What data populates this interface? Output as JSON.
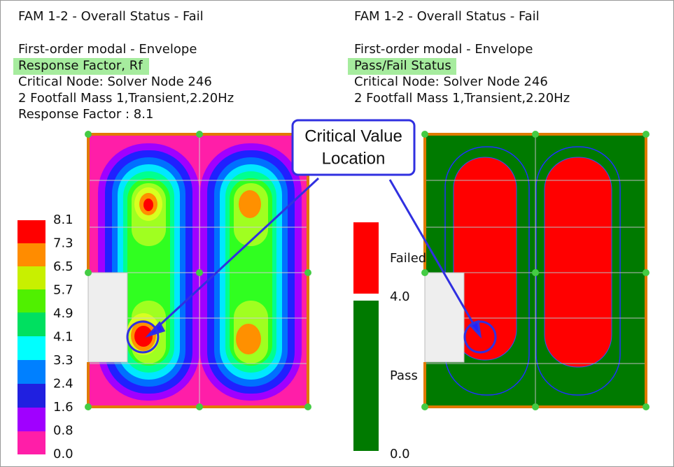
{
  "left_panel": {
    "title": "FAM 1-2 - Overall Status - Fail",
    "lines": [
      "First-order modal - Envelope",
      "Response Factor, Rf",
      "Critical Node: Solver Node 246",
      "2 Footfall Mass 1,Transient,2.20Hz",
      "Response Factor : 8.1"
    ],
    "legend": [
      "8.1",
      "7.3",
      "6.5",
      "5.7",
      "4.9",
      "4.1",
      "3.3",
      "2.4",
      "1.6",
      "0.8",
      "0.0"
    ]
  },
  "right_panel": {
    "title": "FAM 1-2 - Overall Status - Fail",
    "lines": [
      "First-order modal - Envelope",
      "Pass/Fail Status",
      "Critical Node: Solver Node 246",
      "2 Footfall Mass 1,Transient,2.20Hz"
    ],
    "legend": {
      "failed": "Failed",
      "threshold": "4.0",
      "pass": "Pass",
      "min": "0.0"
    }
  },
  "callout": {
    "lines": [
      "Critical Value",
      "Location"
    ]
  }
}
